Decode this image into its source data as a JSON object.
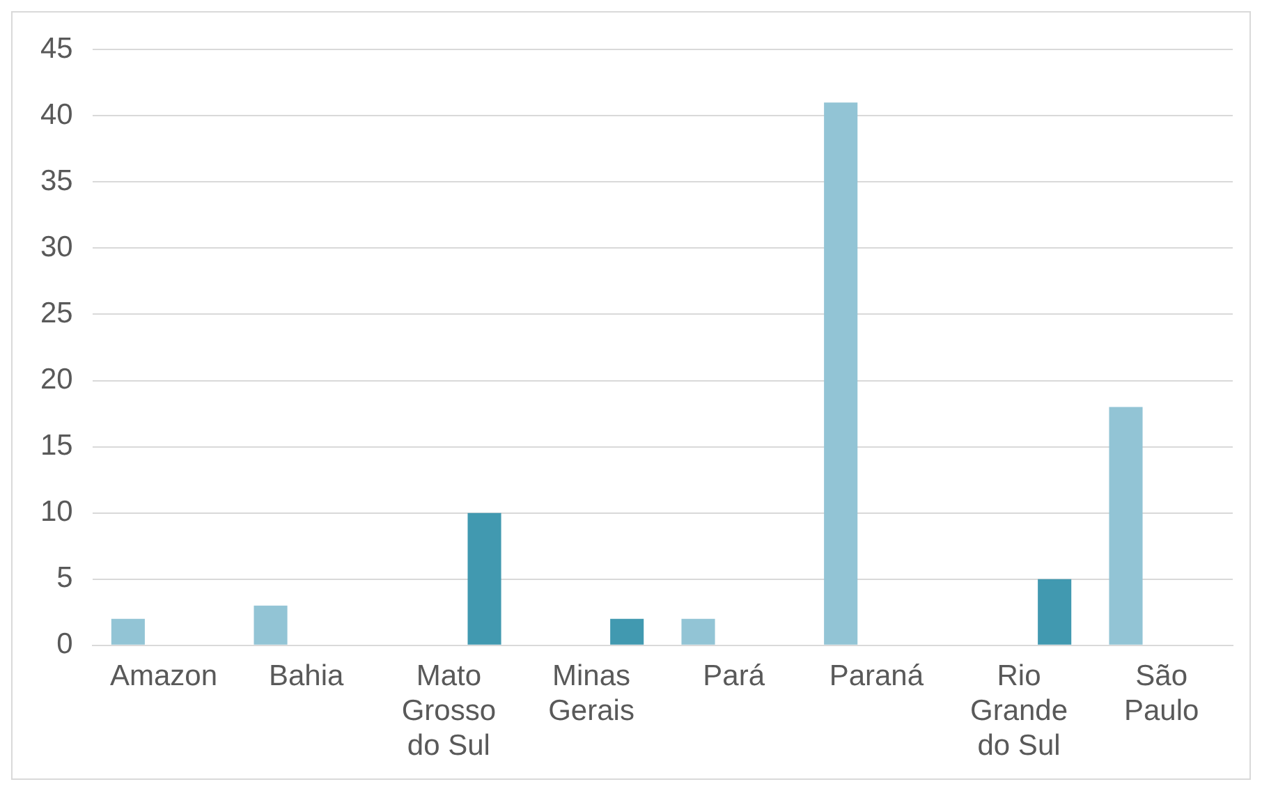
{
  "chart_data": {
    "type": "bar",
    "categories": [
      "Amazon",
      "Bahia",
      "Mato Grosso do Sul",
      "Minas Gerais",
      "Pará",
      "Paraná",
      "Rio Grande do Sul",
      "São Paulo"
    ],
    "series": [
      {
        "color": "#92c4d5",
        "values": [
          2,
          3,
          null,
          null,
          2,
          41,
          null,
          18
        ]
      },
      {
        "color": "#4199b0",
        "values": [
          null,
          null,
          10,
          2,
          null,
          null,
          5,
          null
        ]
      }
    ],
    "ylim": [
      0,
      45
    ],
    "yticks": [
      0,
      5,
      10,
      15,
      20,
      25,
      30,
      35,
      40,
      45
    ],
    "grid": "y",
    "legend": false
  }
}
